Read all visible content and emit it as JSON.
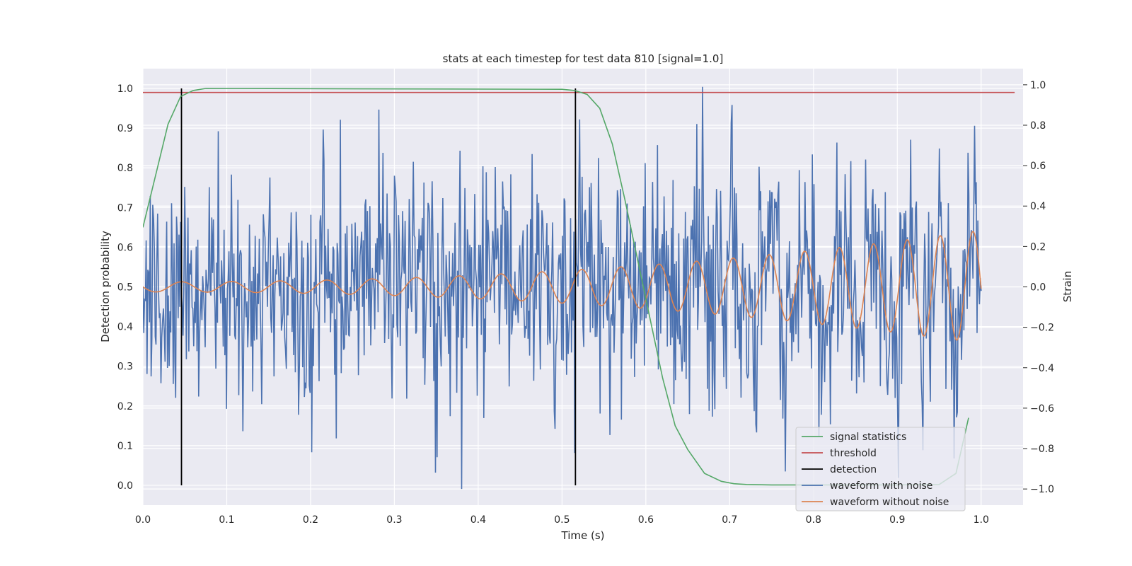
{
  "chart_data": {
    "type": "line",
    "title": "stats at each timestep for test data 810 [signal=1.0]",
    "xlabel": "Time (s)",
    "ylabel_left": "Detection probability",
    "ylabel_right": "Strain",
    "xlim": [
      0.0,
      1.05
    ],
    "ylim_left": [
      -0.05,
      1.05
    ],
    "ylim_right": [
      -1.08,
      1.08
    ],
    "x_ticks": [
      "0.0",
      "0.1",
      "0.2",
      "0.3",
      "0.4",
      "0.5",
      "0.6",
      "0.7",
      "0.8",
      "0.9",
      "1.0"
    ],
    "y_ticks_left": [
      "0.0",
      "0.1",
      "0.2",
      "0.3",
      "0.4",
      "0.5",
      "0.6",
      "0.7",
      "0.8",
      "0.9",
      "1.0"
    ],
    "y_ticks_right": [
      "−1.0",
      "−0.8",
      "−0.6",
      "−0.4",
      "−0.2",
      "0.0",
      "0.2",
      "0.4",
      "0.6",
      "0.8",
      "1.0"
    ],
    "grid": true,
    "legend_position": "lower right",
    "colors": {
      "background": "#eaeaf2",
      "grid": "#ffffff",
      "signal_statistics": "#55a868",
      "threshold": "#c44e52",
      "detection": "#000000",
      "waveform_noise": "#4c72b0",
      "waveform_clean": "#dd8452"
    },
    "signal_statistics": {
      "name": "signal statistics",
      "x": [
        0.0,
        0.015,
        0.03,
        0.045,
        0.06,
        0.075,
        0.5,
        0.515,
        0.53,
        0.545,
        0.56,
        0.575,
        0.59,
        0.605,
        0.62,
        0.635,
        0.65,
        0.67,
        0.69,
        0.705,
        0.72,
        0.75,
        0.8,
        0.85,
        0.9,
        0.95,
        0.97,
        0.985
      ],
      "y": [
        0.65,
        0.78,
        0.91,
        0.98,
        0.995,
        1.0,
        0.998,
        0.995,
        0.985,
        0.95,
        0.86,
        0.72,
        0.57,
        0.42,
        0.27,
        0.15,
        0.09,
        0.03,
        0.01,
        0.004,
        0.002,
        0.001,
        0.001,
        0.001,
        0.001,
        0.002,
        0.03,
        0.17
      ]
    },
    "threshold": {
      "name": "threshold",
      "value": 0.99,
      "x_range": [
        0.0,
        1.04
      ]
    },
    "detections": {
      "name": "detection",
      "x": [
        0.046,
        0.516
      ],
      "y_range": [
        0.0,
        1.0
      ]
    },
    "waveform_with_noise": {
      "name": "waveform with noise",
      "t_range": [
        0.0,
        1.0
      ],
      "samples": 1024,
      "noise_std": 0.3
    },
    "waveform_without_noise": {
      "name": "waveform without noise",
      "t_range": [
        0.0,
        1.0
      ],
      "samples": 1024,
      "amp_start": 0.025,
      "amp_end": 0.28,
      "freq_start": 16,
      "freq_end": 26
    },
    "legend": [
      {
        "label": "signal statistics",
        "color": "#55a868"
      },
      {
        "label": "threshold",
        "color": "#c44e52"
      },
      {
        "label": "detection",
        "color": "#000000"
      },
      {
        "label": "waveform with noise",
        "color": "#4c72b0"
      },
      {
        "label": "waveform without noise",
        "color": "#dd8452"
      }
    ]
  }
}
